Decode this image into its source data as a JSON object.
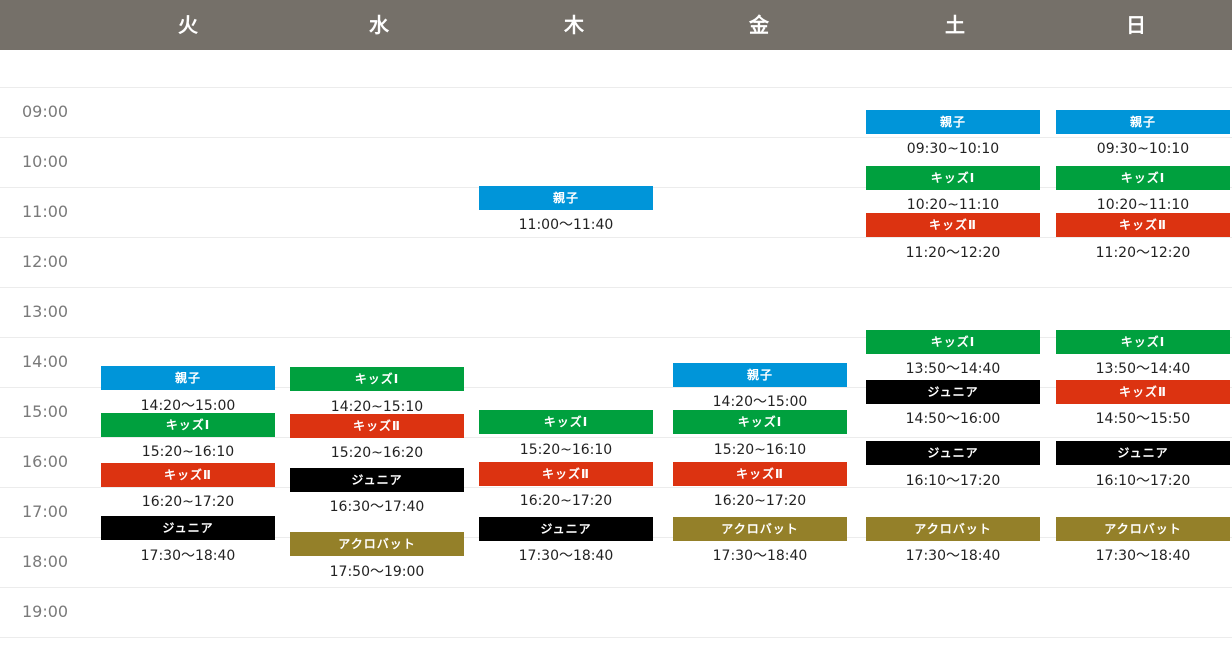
{
  "days": [
    "火",
    "水",
    "木",
    "金",
    "土",
    "日"
  ],
  "times": [
    "09:00",
    "10:00",
    "11:00",
    "12:00",
    "13:00",
    "14:00",
    "15:00",
    "16:00",
    "17:00",
    "18:00",
    "19:00"
  ],
  "colors": {
    "親子": "#0095d9",
    "キッズⅠ": "#00a03e",
    "キッズⅡ": "#dc3311",
    "ジュニア": "#000000",
    "アクロバット": "#948029"
  },
  "columns": [
    {
      "day": "火",
      "classes": [
        {
          "label": "親子",
          "time": "14:20〜15:00"
        },
        {
          "label": "キッズⅠ",
          "time": "15:20~16:10"
        },
        {
          "label": "キッズⅡ",
          "time": "16:20~17:20"
        },
        {
          "label": "ジュニア",
          "time": "17:30〜18:40"
        }
      ]
    },
    {
      "day": "水",
      "classes": [
        {
          "label": "キッズⅠ",
          "time": "14:20~15:10"
        },
        {
          "label": "キッズⅡ",
          "time": "15:20~16:20"
        },
        {
          "label": "ジュニア",
          "time": "16:30〜17:40"
        },
        {
          "label": "アクロバット",
          "time": "17:50〜19:00"
        }
      ]
    },
    {
      "day": "木",
      "classes": [
        {
          "label": "親子",
          "time": "11:00〜11:40"
        },
        {
          "label": "キッズⅠ",
          "time": "15:20~16:10"
        },
        {
          "label": "キッズⅡ",
          "time": "16:20~17:20"
        },
        {
          "label": "ジュニア",
          "time": "17:30〜18:40"
        }
      ]
    },
    {
      "day": "金",
      "classes": [
        {
          "label": "親子",
          "time": "14:20〜15:00"
        },
        {
          "label": "キッズⅠ",
          "time": "15:20~16:10"
        },
        {
          "label": "キッズⅡ",
          "time": "16:20~17:20"
        },
        {
          "label": "アクロバット",
          "time": "17:30〜18:40"
        }
      ]
    },
    {
      "day": "土",
      "classes": [
        {
          "label": "親子",
          "time": "09:30~10:10"
        },
        {
          "label": "キッズⅠ",
          "time": "10:20~11:10"
        },
        {
          "label": "キッズⅡ",
          "time": "11:20〜12:20"
        },
        {
          "label": "キッズⅠ",
          "time": "13:50〜14:40"
        },
        {
          "label": "ジュニア",
          "time": "14:50〜16:00"
        },
        {
          "label": "ジュニア",
          "time": "16:10〜17:20"
        },
        {
          "label": "アクロバット",
          "time": "17:30〜18:40"
        }
      ]
    },
    {
      "day": "日",
      "classes": [
        {
          "label": "親子",
          "time": "09:30~10:10"
        },
        {
          "label": "キッズⅠ",
          "time": "10:20~11:10"
        },
        {
          "label": "キッズⅡ",
          "time": "11:20〜12:20"
        },
        {
          "label": "キッズⅠ",
          "time": "13:50〜14:40"
        },
        {
          "label": "キッズⅡ",
          "time": "14:50〜15:50"
        },
        {
          "label": "ジュニア",
          "time": "16:10〜17:20"
        },
        {
          "label": "アクロバット",
          "time": "17:30〜18:40"
        }
      ]
    }
  ]
}
